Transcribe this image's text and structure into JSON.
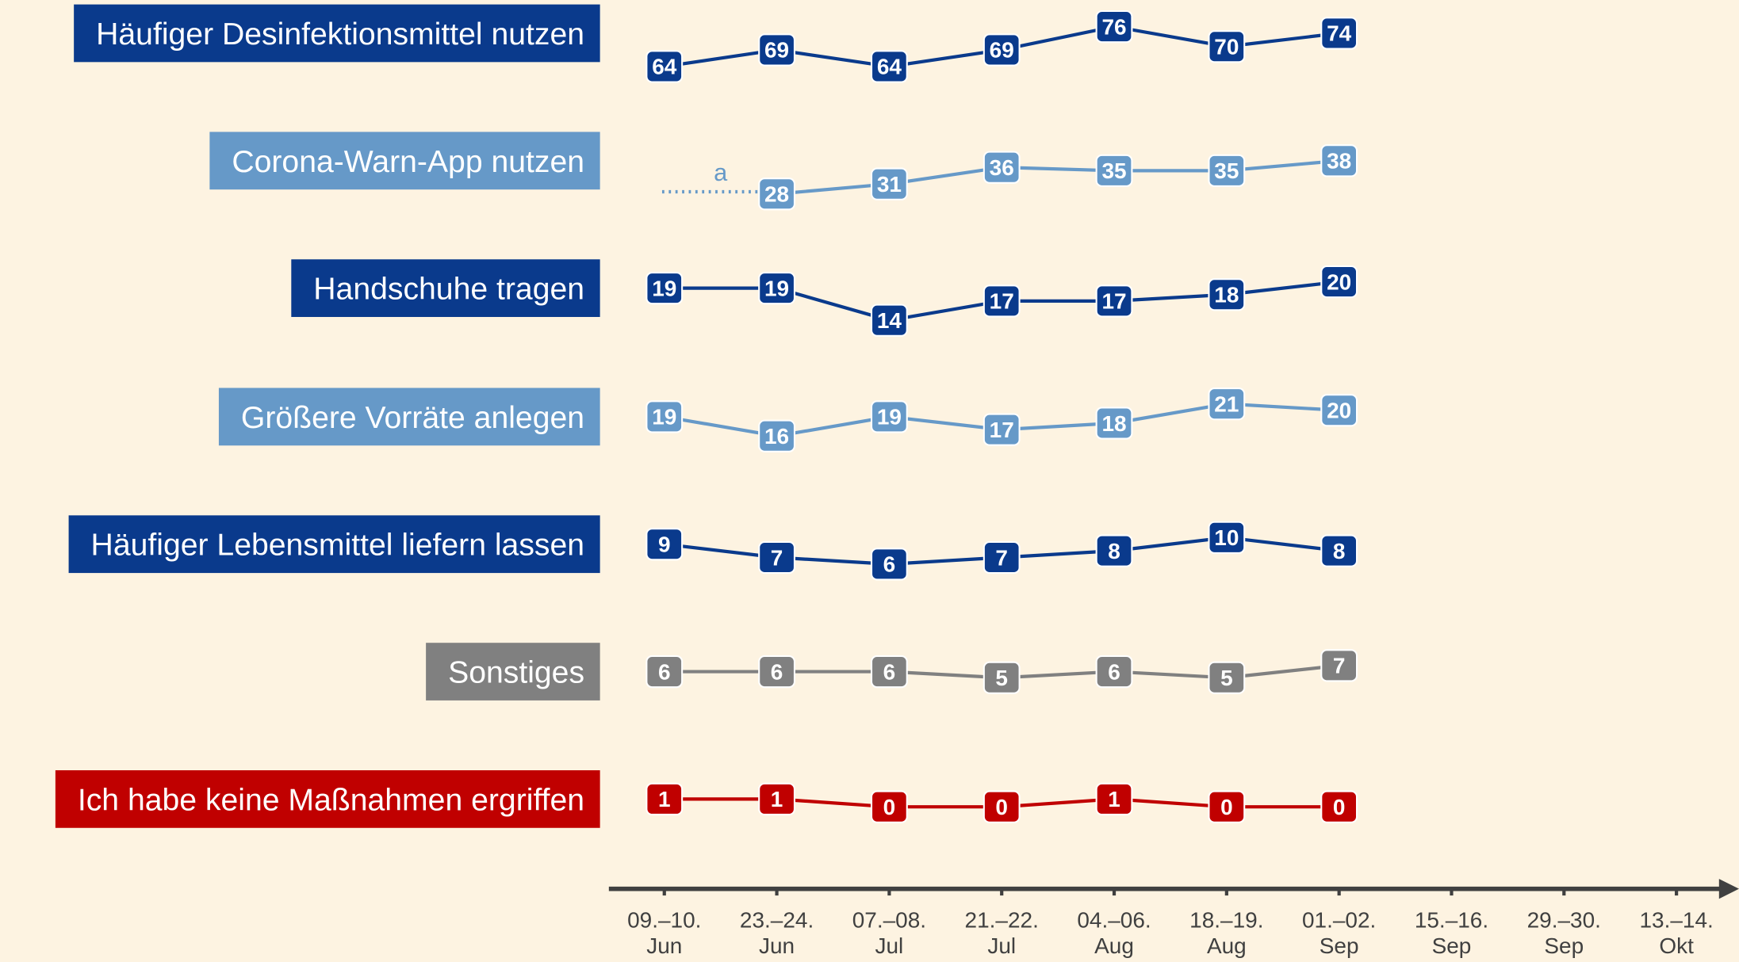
{
  "chart_data": {
    "type": "line",
    "categories": [
      "09.–10.\nJun",
      "23.–24.\nJun",
      "07.–08.\nJul",
      "21.–22.\nJul",
      "04.–06.\nAug",
      "18.–19.\nAug",
      "01.–02.\nSep",
      "15.–16.\nSep",
      "29.–30.\nSep",
      "13.–14.\nOkt"
    ],
    "series": [
      {
        "name": "Häufiger Desinfektionsmittel nutzen",
        "color": "#0a3a8c",
        "values": [
          64,
          69,
          64,
          69,
          76,
          70,
          74,
          null,
          null,
          null
        ]
      },
      {
        "name": "Corona-Warn-App nutzen",
        "color": "#6699c8",
        "note": "a",
        "values": [
          null,
          28,
          31,
          36,
          35,
          35,
          38,
          null,
          null,
          null
        ]
      },
      {
        "name": "Handschuhe tragen",
        "color": "#0a3a8c",
        "values": [
          19,
          19,
          14,
          17,
          17,
          18,
          20,
          null,
          null,
          null
        ]
      },
      {
        "name": "Größere Vorräte anlegen",
        "color": "#6699c8",
        "values": [
          19,
          16,
          19,
          17,
          18,
          21,
          20,
          null,
          null,
          null
        ]
      },
      {
        "name": "Häufiger Lebensmittel liefern lassen",
        "color": "#0a3a8c",
        "values": [
          9,
          7,
          6,
          7,
          8,
          10,
          8,
          null,
          null,
          null
        ]
      },
      {
        "name": "Sonstiges",
        "color": "#808080",
        "values": [
          6,
          6,
          6,
          5,
          6,
          5,
          7,
          null,
          null,
          null
        ]
      },
      {
        "name": "Ich habe keine Maßnahmen ergriffen",
        "color": "#c00000",
        "values": [
          1,
          1,
          0,
          0,
          1,
          0,
          0,
          null,
          null,
          null
        ]
      }
    ]
  }
}
